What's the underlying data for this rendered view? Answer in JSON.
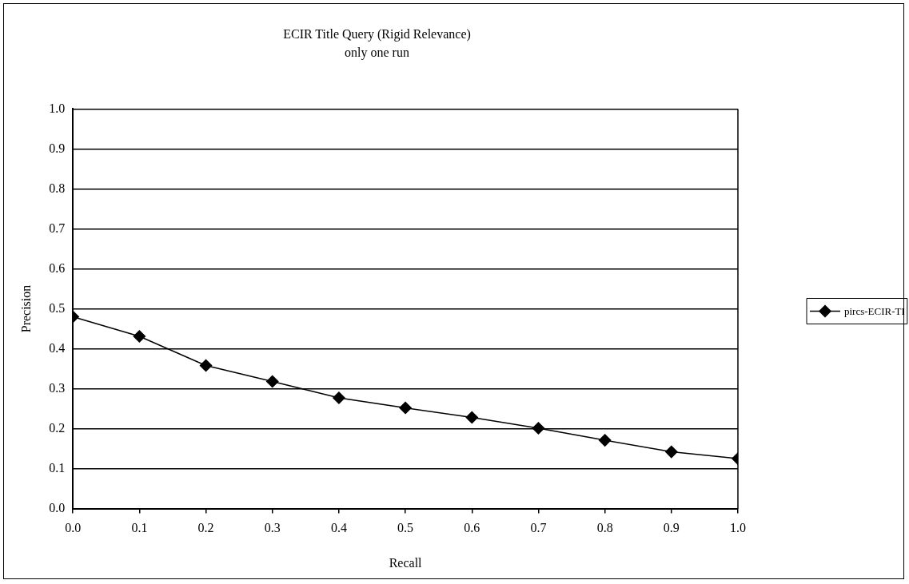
{
  "chart_data": {
    "type": "line",
    "title": "ECIR Title Query (Rigid Relevance)",
    "subtitle": "only one run",
    "xlabel": "Recall",
    "ylabel": "Precision",
    "x": [
      0,
      0.1,
      0.2,
      0.3,
      0.4,
      0.5,
      0.6,
      0.7,
      0.8,
      0.9,
      1.0
    ],
    "series": [
      {
        "name": "pircs-ECIR-TI",
        "color": "#000000",
        "values": [
          0.48,
          0.431,
          0.358,
          0.318,
          0.277,
          0.252,
          0.228,
          0.201,
          0.171,
          0.142,
          0.125
        ]
      }
    ],
    "xlim": [
      0,
      1
    ],
    "xticks": [
      {
        "value": 0,
        "label": "0.0"
      },
      {
        "value": 0.1,
        "label": "0.1"
      },
      {
        "value": 0.2,
        "label": "0.2"
      },
      {
        "value": 0.3,
        "label": "0.3"
      },
      {
        "value": 0.4,
        "label": "0.4"
      },
      {
        "value": 0.5,
        "label": "0.5"
      },
      {
        "value": 0.6,
        "label": "0.6"
      },
      {
        "value": 0.7,
        "label": "0.7"
      },
      {
        "value": 0.8,
        "label": "0.8"
      },
      {
        "value": 0.9,
        "label": "0.9"
      },
      {
        "value": 1,
        "label": "1.0"
      }
    ],
    "ylim": [
      0,
      1
    ],
    "yticks": [
      {
        "value": 0,
        "label": "0.0"
      },
      {
        "value": 0.1,
        "label": "0.1"
      },
      {
        "value": 0.2,
        "label": "0.2"
      },
      {
        "value": 0.3,
        "label": "0.3"
      },
      {
        "value": 0.4,
        "label": "0.4"
      },
      {
        "value": 0.5,
        "label": "0.5"
      },
      {
        "value": 0.6,
        "label": "0.6"
      },
      {
        "value": 0.7,
        "label": "0.7"
      },
      {
        "value": 0.8,
        "label": "0.8"
      },
      {
        "value": 0.9,
        "label": "0.9"
      },
      {
        "value": 1,
        "label": "1.0"
      }
    ],
    "grid": "y",
    "legend": "right",
    "marker": "diamond",
    "line_style": "solid"
  }
}
